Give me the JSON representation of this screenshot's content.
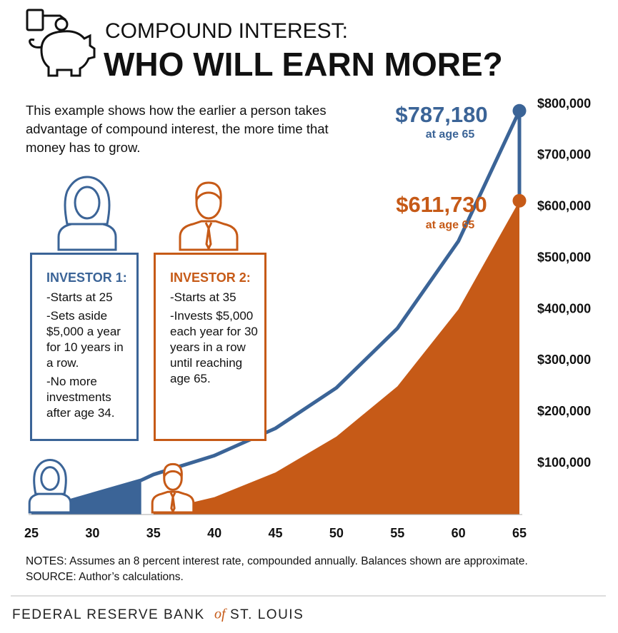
{
  "chart_data": {
    "type": "line",
    "subtitle": "COMPOUND INTEREST:",
    "title": "WHO WILL EARN MORE?",
    "description": "This example shows how the earlier a person takes advantage of compound interest, the more time that money has to grow.",
    "x": [
      25,
      30,
      34,
      35,
      40,
      45,
      50,
      55,
      60,
      65
    ],
    "xlim": [
      25,
      65
    ],
    "xticks": [
      25,
      30,
      35,
      40,
      45,
      50,
      55,
      60,
      65
    ],
    "ylim": [
      0,
      800000
    ],
    "yticks": [
      {
        "value": 100000,
        "label": "$100,000"
      },
      {
        "value": 200000,
        "label": "$200,000"
      },
      {
        "value": 300000,
        "label": "$300,000"
      },
      {
        "value": 400000,
        "label": "$400,000"
      },
      {
        "value": 500000,
        "label": "$500,000"
      },
      {
        "value": 600000,
        "label": "$600,000"
      },
      {
        "value": 700000,
        "label": "$700,000"
      },
      {
        "value": 800000,
        "label": "$800,000"
      }
    ],
    "series": [
      {
        "name": "INVESTOR 1:",
        "color": "#3b6497",
        "details": [
          "-Starts at 25",
          "-Sets aside $5,000 a year for 10 years in a row.",
          "-No more investments after age 34."
        ],
        "values": [
          5400,
          39600,
          67000,
          78000,
          115000,
          168000,
          247000,
          363000,
          533000,
          787180
        ],
        "value_labels": [
          null,
          null,
          null,
          null,
          null,
          null,
          null,
          null,
          null,
          "$787,180"
        ],
        "note": "at age 65"
      },
      {
        "name": "INVESTOR 2:",
        "color": "#c65a17",
        "details": [
          "-Starts at 35",
          "-Invests $5,000 each year for 30 years in a row until reaching age 65."
        ],
        "values": [
          null,
          null,
          null,
          5400,
          34000,
          82000,
          152000,
          250000,
          400000,
          611730
        ],
        "value_labels": [
          null,
          null,
          null,
          null,
          null,
          null,
          null,
          null,
          null,
          "$611,730"
        ],
        "note": "at age 65"
      }
    ],
    "notes": "NOTES: Assumes an 8 percent interest rate, compounded annually. Balances shown are approximate.",
    "source": "SOURCE: Author’s calculations."
  },
  "footer": {
    "bank": "FEDERAL RESERVE BANK",
    "of": "of",
    "city": "ST. LOUIS"
  }
}
